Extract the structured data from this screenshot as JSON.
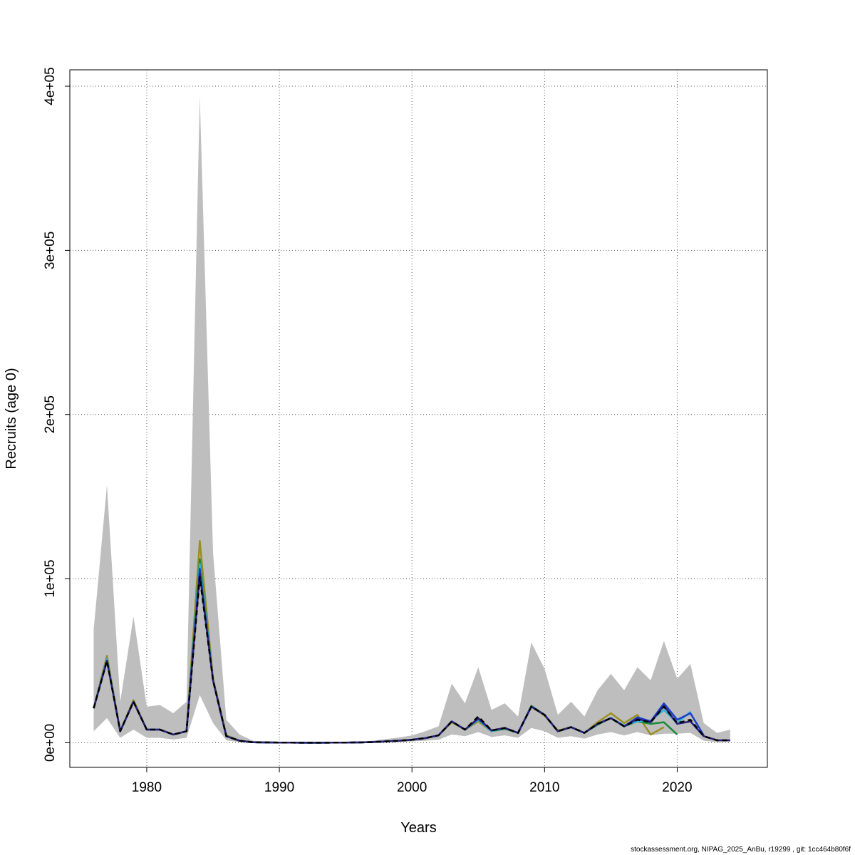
{
  "chart_data": {
    "type": "line",
    "xlabel": "Years",
    "ylabel": "Recruits (age 0)",
    "xlim": [
      1974.2,
      2026.8
    ],
    "ylim": [
      -15000,
      410000
    ],
    "x_ticks": [
      1980,
      1990,
      2000,
      2010,
      2020
    ],
    "x_tick_labels": [
      "1980",
      "1990",
      "2000",
      "2010",
      "2020"
    ],
    "y_ticks": [
      0,
      100000,
      200000,
      300000,
      400000
    ],
    "y_tick_labels": [
      "0e+00",
      "1e+05",
      "2e+05",
      "3e+05",
      "4e+05"
    ],
    "grid": true,
    "band": {
      "x": [
        1976,
        1977,
        1978,
        1979,
        1980,
        1981,
        1982,
        1983,
        1984,
        1985,
        1986,
        1987,
        1988,
        1989,
        1990,
        1991,
        1992,
        1993,
        1994,
        1995,
        1996,
        1997,
        1998,
        1999,
        2000,
        2001,
        2002,
        2003,
        2004,
        2005,
        2006,
        2007,
        2008,
        2009,
        2010,
        2011,
        2012,
        2013,
        2014,
        2015,
        2016,
        2017,
        2018,
        2019,
        2020,
        2021,
        2022,
        2023,
        2024
      ],
      "lower": [
        7000,
        15000,
        3000,
        8000,
        3000,
        3000,
        2000,
        3000,
        29000,
        12000,
        1500,
        300,
        80,
        30,
        15,
        10,
        8,
        10,
        10,
        20,
        60,
        150,
        300,
        500,
        800,
        1200,
        1800,
        5000,
        4000,
        6500,
        3500,
        4500,
        3000,
        9000,
        7000,
        3000,
        4000,
        2500,
        5000,
        6500,
        4500,
        6500,
        4500,
        5500,
        5500,
        6000,
        1200,
        300,
        500
      ],
      "upper": [
        69000,
        157000,
        25000,
        77000,
        22000,
        23000,
        18000,
        25000,
        394000,
        116000,
        14000,
        5000,
        1200,
        700,
        350,
        250,
        200,
        220,
        250,
        350,
        700,
        1200,
        2200,
        3200,
        4500,
        7000,
        10000,
        36000,
        24000,
        46000,
        20000,
        24000,
        16000,
        61000,
        45000,
        17000,
        25000,
        16000,
        32000,
        42000,
        32000,
        46000,
        38000,
        62000,
        39000,
        48000,
        12000,
        6000,
        8000
      ]
    },
    "series": [
      {
        "color": "#000000",
        "dash": "7,5",
        "x": [
          1976,
          1977,
          1978,
          1979,
          1980,
          1981,
          1982,
          1983,
          1984,
          1985,
          1986,
          1987,
          1988,
          1989,
          1990,
          1991,
          1992,
          1993,
          1994,
          1995,
          1996,
          1997,
          1998,
          1999,
          2000,
          2001,
          2002,
          2003,
          2004,
          2005,
          2006,
          2007,
          2008,
          2009,
          2010,
          2011,
          2012,
          2013,
          2014,
          2015,
          2016,
          2017,
          2018,
          2019,
          2020,
          2021,
          2022,
          2023,
          2024
        ],
        "y": [
          21000,
          50000,
          7000,
          25000,
          8000,
          8000,
          5000,
          7000,
          101000,
          38000,
          4000,
          1200,
          300,
          200,
          100,
          60,
          50,
          50,
          60,
          80,
          200,
          400,
          800,
          1200,
          1800,
          2800,
          4500,
          13000,
          8000,
          16000,
          7500,
          9000,
          6000,
          22000,
          17000,
          7000,
          9500,
          6000,
          11500,
          15000,
          10000,
          14000,
          12500,
          22000,
          12000,
          14000,
          4000,
          1500,
          1500
        ]
      },
      {
        "color": "#2a1f7a",
        "x": [
          1976,
          1977,
          1978,
          1979,
          1980,
          1981,
          1982,
          1983,
          1984,
          1985,
          1986,
          1987,
          1988,
          1989,
          1990,
          1991,
          1992,
          1993,
          1994,
          1995,
          1996,
          1997,
          1998,
          1999,
          2000,
          2001,
          2002,
          2003,
          2004,
          2005,
          2006,
          2007,
          2008,
          2009,
          2010,
          2011,
          2012,
          2013,
          2014,
          2015,
          2016,
          2017,
          2018,
          2019,
          2020,
          2021,
          2022,
          2023,
          2024
        ],
        "y": [
          21000,
          50000,
          7000,
          25000,
          8000,
          8000,
          5000,
          7000,
          103000,
          38000,
          4000,
          1200,
          300,
          200,
          100,
          60,
          50,
          50,
          60,
          80,
          200,
          400,
          800,
          1200,
          1800,
          2800,
          4500,
          13000,
          8000,
          15000,
          7500,
          9000,
          6000,
          22000,
          17000,
          7000,
          9500,
          6000,
          11500,
          15000,
          10000,
          14500,
          12500,
          22500,
          11500,
          13000,
          4000,
          1500,
          1500
        ]
      },
      {
        "color": "#1a3fc9",
        "x": [
          1976,
          1977,
          1978,
          1979,
          1980,
          1981,
          1982,
          1983,
          1984,
          1985,
          1986,
          1987,
          1988,
          1989,
          1990,
          1991,
          1992,
          1993,
          1994,
          1995,
          1996,
          1997,
          1998,
          1999,
          2000,
          2001,
          2002,
          2003,
          2004,
          2005,
          2006,
          2007,
          2008,
          2009,
          2010,
          2011,
          2012,
          2013,
          2014,
          2015,
          2016,
          2017,
          2018,
          2019,
          2020,
          2021,
          2022
        ],
        "y": [
          21000,
          50000,
          7000,
          25000,
          8000,
          8000,
          5000,
          7000,
          106000,
          38000,
          4000,
          1200,
          300,
          200,
          100,
          60,
          50,
          50,
          60,
          80,
          200,
          400,
          800,
          1200,
          1800,
          2800,
          4500,
          13000,
          8000,
          14500,
          7500,
          9000,
          6000,
          22000,
          17000,
          7000,
          9500,
          6000,
          11500,
          15000,
          10000,
          15500,
          13000,
          24000,
          14000,
          18000,
          4500
        ]
      },
      {
        "color": "#2fb5d6",
        "x": [
          1976,
          1977,
          1978,
          1979,
          1980,
          1981,
          1982,
          1983,
          1984,
          1985,
          1986,
          1987,
          1988,
          1989,
          1990,
          1991,
          1992,
          1993,
          1994,
          1995,
          1996,
          1997,
          1998,
          1999,
          2000,
          2001,
          2002,
          2003,
          2004,
          2005,
          2006,
          2007,
          2008,
          2009,
          2010,
          2011,
          2012,
          2013,
          2014,
          2015,
          2016,
          2017,
          2018,
          2019,
          2020,
          2021
        ],
        "y": [
          21000,
          51000,
          7000,
          25000,
          8000,
          8000,
          5000,
          7000,
          109000,
          38000,
          4000,
          1200,
          300,
          200,
          100,
          60,
          50,
          50,
          60,
          80,
          200,
          400,
          800,
          1200,
          1800,
          2800,
          4500,
          13000,
          8000,
          14000,
          7000,
          9000,
          6000,
          22000,
          17000,
          7000,
          9500,
          6000,
          11500,
          15000,
          10500,
          13000,
          13500,
          20000,
          12000,
          19000
        ]
      },
      {
        "color": "#1a8a3a",
        "x": [
          1976,
          1977,
          1978,
          1979,
          1980,
          1981,
          1982,
          1983,
          1984,
          1985,
          1986,
          1987,
          1988,
          1989,
          1990,
          1991,
          1992,
          1993,
          1994,
          1995,
          1996,
          1997,
          1998,
          1999,
          2000,
          2001,
          2002,
          2003,
          2004,
          2005,
          2006,
          2007,
          2008,
          2009,
          2010,
          2011,
          2012,
          2013,
          2014,
          2015,
          2016,
          2017,
          2018,
          2019,
          2020
        ],
        "y": [
          21000,
          51000,
          7000,
          25000,
          8000,
          8000,
          5000,
          7000,
          112000,
          38000,
          4000,
          1200,
          300,
          200,
          100,
          60,
          50,
          50,
          60,
          80,
          200,
          400,
          800,
          1200,
          1800,
          2800,
          4500,
          13000,
          8000,
          14000,
          7000,
          8500,
          6000,
          22500,
          17000,
          7000,
          9500,
          6000,
          11000,
          15000,
          10000,
          13000,
          11500,
          12500,
          5000
        ]
      },
      {
        "color": "#9a9020",
        "x": [
          1976,
          1977,
          1978,
          1979,
          1980,
          1981,
          1982,
          1983,
          1984,
          1985,
          1986,
          1987,
          1988,
          1989,
          1990,
          1991,
          1992,
          1993,
          1994,
          1995,
          1996,
          1997,
          1998,
          1999,
          2000,
          2001,
          2002,
          2003,
          2004,
          2005,
          2006,
          2007,
          2008,
          2009,
          2010,
          2011,
          2012,
          2013,
          2014,
          2015,
          2016,
          2017,
          2018,
          2019
        ],
        "y": [
          21000,
          53000,
          7000,
          26000,
          8000,
          8000,
          5000,
          7000,
          123000,
          39000,
          4500,
          1300,
          300,
          200,
          100,
          60,
          50,
          50,
          60,
          80,
          200,
          400,
          800,
          1200,
          1800,
          2800,
          4500,
          12500,
          8000,
          13000,
          7000,
          8500,
          6000,
          22000,
          16500,
          7500,
          9500,
          6000,
          12500,
          18000,
          12000,
          17000,
          5000,
          9500
        ]
      }
    ]
  },
  "footer_text": "stockassessment.org, NIPAG_2025_AnBu, r19299 , git: 1cc464b80f6f"
}
